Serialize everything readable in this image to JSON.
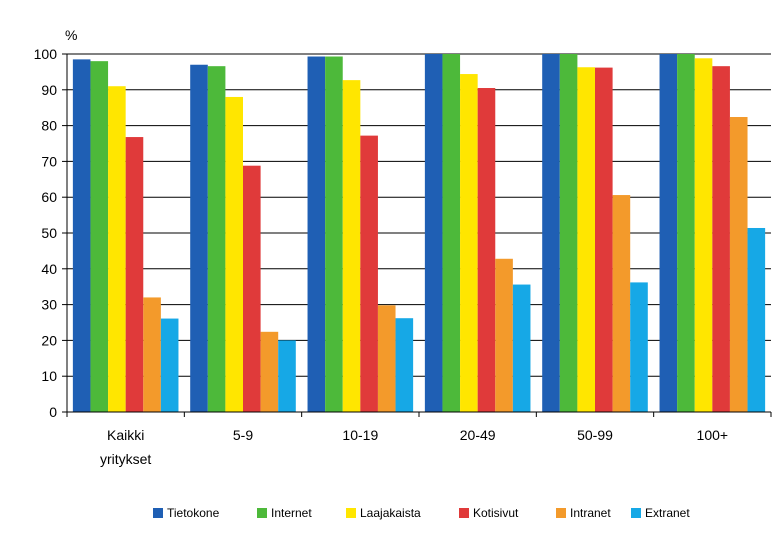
{
  "chart_data": {
    "type": "bar",
    "ylabel": "%",
    "ylim": [
      0,
      100
    ],
    "yticks": [
      0,
      10,
      20,
      30,
      40,
      50,
      60,
      70,
      80,
      90,
      100
    ],
    "grid": true,
    "legend_position": "bottom",
    "categories": [
      [
        "Kaikki",
        "yritykset"
      ],
      [
        "5-9"
      ],
      [
        "10-19"
      ],
      [
        "20-49"
      ],
      [
        "50-99"
      ],
      [
        "100+"
      ]
    ],
    "series": [
      {
        "name": "Tietokone",
        "color": "#1F5FB4",
        "values": [
          98.5,
          97.0,
          99.3,
          100.0,
          100.0,
          100.0
        ]
      },
      {
        "name": "Internet",
        "color": "#4DB93A",
        "values": [
          98.0,
          96.6,
          99.3,
          100.0,
          100.0,
          100.0
        ]
      },
      {
        "name": "Laajakaista",
        "color": "#FFE600",
        "values": [
          91.0,
          88.0,
          92.7,
          94.4,
          96.3,
          98.8
        ]
      },
      {
        "name": "Kotisivut",
        "color": "#E03A3A",
        "values": [
          76.8,
          68.8,
          77.2,
          90.5,
          96.2,
          96.6
        ]
      },
      {
        "name": "Intranet",
        "color": "#F39A2B",
        "values": [
          32.0,
          22.4,
          29.8,
          42.8,
          60.6,
          82.4
        ]
      },
      {
        "name": "Extranet",
        "color": "#16A8E6",
        "values": [
          26.1,
          20.0,
          26.2,
          35.6,
          36.2,
          51.4
        ]
      }
    ]
  }
}
